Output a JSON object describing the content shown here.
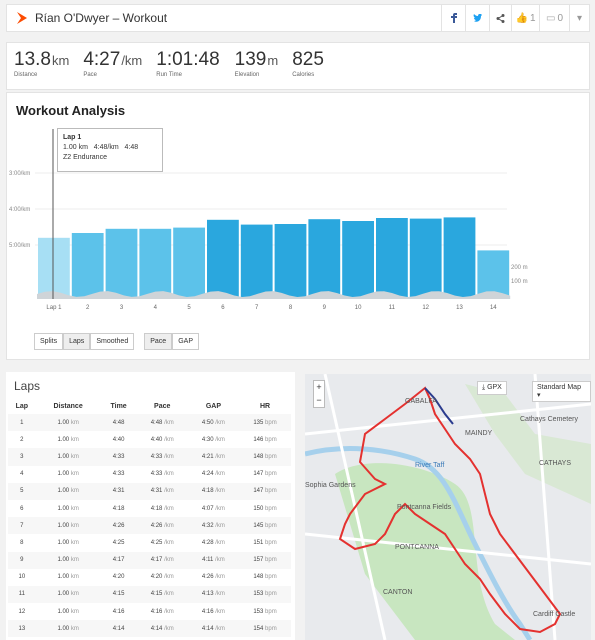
{
  "header": {
    "title": "Rían O'Dwyer – Workout",
    "kudos_count": "1",
    "comment_count": "0"
  },
  "stats": [
    {
      "value": "13.8",
      "unit": "km",
      "label": "Distance"
    },
    {
      "value": "4:27",
      "unit": "/km",
      "label": "Pace"
    },
    {
      "value": "1:01:48",
      "unit": "",
      "label": "Run Time"
    },
    {
      "value": "139",
      "unit": "m",
      "label": "Elevation"
    },
    {
      "value": "825",
      "unit": "",
      "label": "Calories"
    }
  ],
  "analysis": {
    "title": "Workout Analysis",
    "tooltip": {
      "lap": "Lap 1",
      "distance": "1.00 km",
      "pace": "4:48/km",
      "time": "4:48",
      "zone": "Z2 Endurance"
    },
    "toggles": {
      "splits": "Splits",
      "laps": "Laps",
      "smoothed": "Smoothed",
      "pace": "Pace",
      "gap": "GAP"
    }
  },
  "chart_data": {
    "type": "bar",
    "categories": [
      "Lap 1",
      "2",
      "3",
      "4",
      "5",
      "6",
      "7",
      "8",
      "9",
      "10",
      "11",
      "12",
      "13",
      "14"
    ],
    "values": [
      "4:48",
      "4:40",
      "4:33",
      "4:33",
      "4:31",
      "4:18",
      "4:26",
      "4:25",
      "4:17",
      "4:20",
      "4:15",
      "4:16",
      "4:14",
      "5:09"
    ],
    "values_seconds": [
      288,
      280,
      273,
      273,
      271,
      258,
      266,
      265,
      257,
      260,
      255,
      256,
      254,
      309
    ],
    "highlight_color": "#2aa7de",
    "y_ticks": [
      "3:00/km",
      "4:00/km",
      "5:00/km"
    ],
    "elevation_ticks": [
      "200 m",
      "100 m"
    ]
  },
  "laps": {
    "title": "Laps",
    "headers": [
      "Lap",
      "Distance",
      "Time",
      "Pace",
      "GAP",
      "HR"
    ],
    "rows": [
      [
        "1",
        "1.00 km",
        "4:48",
        "4:48 /km",
        "4:50 /km",
        "135 bpm"
      ],
      [
        "2",
        "1.00 km",
        "4:40",
        "4:40 /km",
        "4:30 /km",
        "146 bpm"
      ],
      [
        "3",
        "1.00 km",
        "4:33",
        "4:33 /km",
        "4:21 /km",
        "148 bpm"
      ],
      [
        "4",
        "1.00 km",
        "4:33",
        "4:33 /km",
        "4:24 /km",
        "147 bpm"
      ],
      [
        "5",
        "1.00 km",
        "4:31",
        "4:31 /km",
        "4:18 /km",
        "147 bpm"
      ],
      [
        "6",
        "1.00 km",
        "4:18",
        "4:18 /km",
        "4:07 /km",
        "150 bpm"
      ],
      [
        "7",
        "1.00 km",
        "4:26",
        "4:26 /km",
        "4:32 /km",
        "145 bpm"
      ],
      [
        "8",
        "1.00 km",
        "4:25",
        "4:25 /km",
        "4:28 /km",
        "151 bpm"
      ],
      [
        "9",
        "1.00 km",
        "4:17",
        "4:17 /km",
        "4:11 /km",
        "157 bpm"
      ],
      [
        "10",
        "1.00 km",
        "4:20",
        "4:20 /km",
        "4:26 /km",
        "148 bpm"
      ],
      [
        "11",
        "1.00 km",
        "4:15",
        "4:15 /km",
        "4:13 /km",
        "153 bpm"
      ],
      [
        "12",
        "1.00 km",
        "4:16",
        "4:16 /km",
        "4:16 /km",
        "153 bpm"
      ],
      [
        "13",
        "1.00 km",
        "4:14",
        "4:14 /km",
        "4:14 /km",
        "154 bpm"
      ]
    ]
  },
  "map": {
    "gpx_label": "GPX",
    "style_label": "Standard Map",
    "labels": [
      "GABALFA",
      "MAINDY",
      "Cathays Cemetery",
      "CATHAYS",
      "Pontcanna Fields",
      "PONTCANNA",
      "CANTON",
      "Cardiff Castle",
      "Sophia Gardens",
      "River Taff"
    ]
  }
}
